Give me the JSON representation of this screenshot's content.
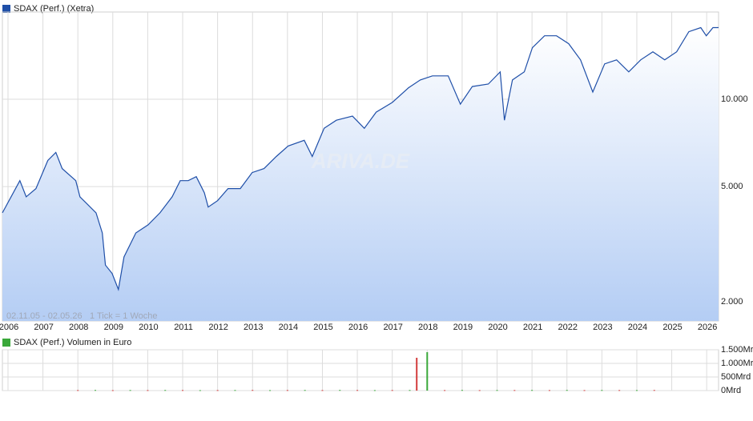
{
  "chart_data": [
    {
      "type": "line",
      "title": "SDAX (Perf.) (Xetra)",
      "color": "#1f4fa8",
      "range_note": "02.11.05 - 02.05.26",
      "tick_note": "1 Tick = 1 Woche",
      "watermark": "ARIVA.DE",
      "log_scale": true,
      "grid": true,
      "x": [
        2005.84,
        2006.34,
        2006.52,
        2006.8,
        2007.14,
        2007.37,
        2007.55,
        2007.94,
        2008.06,
        2008.52,
        2008.7,
        2008.79,
        2008.98,
        2009.16,
        2009.32,
        2009.66,
        2010.01,
        2010.35,
        2010.7,
        2010.93,
        2011.16,
        2011.39,
        2011.62,
        2011.73,
        2012.0,
        2012.3,
        2012.65,
        2012.99,
        2013.33,
        2013.68,
        2014.02,
        2014.48,
        2014.71,
        2015.05,
        2015.4,
        2015.86,
        2016.2,
        2016.54,
        2017.0,
        2017.46,
        2017.8,
        2018.15,
        2018.6,
        2018.95,
        2019.29,
        2019.75,
        2020.09,
        2020.21,
        2020.44,
        2020.78,
        2021.01,
        2021.36,
        2021.7,
        2022.05,
        2022.39,
        2022.74,
        2023.08,
        2023.42,
        2023.77,
        2024.11,
        2024.46,
        2024.8,
        2025.14,
        2025.49,
        2025.83,
        2025.99,
        2026.18,
        2026.34
      ],
      "values": [
        4060,
        5240,
        4610,
        4920,
        6150,
        6560,
        5770,
        5240,
        4610,
        4060,
        3460,
        2680,
        2510,
        2210,
        2860,
        3460,
        3690,
        4060,
        4610,
        5240,
        5240,
        5410,
        4760,
        4250,
        4470,
        4920,
        4920,
        5590,
        5770,
        6350,
        6900,
        7220,
        6350,
        7940,
        8470,
        8750,
        7940,
        9030,
        9750,
        10940,
        11660,
        12040,
        12040,
        9620,
        11070,
        11290,
        12430,
        8470,
        11660,
        12430,
        15060,
        16560,
        16560,
        15550,
        13680,
        10590,
        13250,
        13680,
        12430,
        13680,
        14580,
        13680,
        14580,
        17110,
        17670,
        16560,
        17670,
        17670
      ],
      "xlim": [
        2005.84,
        2026.34
      ],
      "xticks": [
        2006,
        2007,
        2008,
        2009,
        2010,
        2011,
        2012,
        2013,
        2014,
        2015,
        2016,
        2017,
        2018,
        2019,
        2020,
        2021,
        2022,
        2023,
        2024,
        2025,
        2026
      ],
      "ylim": [
        1720,
        20000
      ],
      "yticks": [
        {
          "value": 2000,
          "label": "2.000"
        },
        {
          "value": 5000,
          "label": "5.000"
        },
        {
          "value": 10000,
          "label": "10.000"
        }
      ]
    },
    {
      "type": "bar",
      "title": "SDAX (Perf.) Volumen in Euro",
      "color": "#3aa83a",
      "grid": true,
      "x": [
        2008.0,
        2008.5,
        2009.0,
        2009.5,
        2010.0,
        2010.5,
        2011.0,
        2011.5,
        2012.0,
        2012.5,
        2013.0,
        2013.5,
        2014.0,
        2014.5,
        2015.0,
        2015.5,
        2016.0,
        2016.5,
        2017.0,
        2017.5,
        2017.7,
        2018.0,
        2018.5,
        2019.0,
        2019.5,
        2020.0,
        2020.5,
        2021.0,
        2021.5,
        2022.0,
        2022.5,
        2023.0,
        2023.5,
        2024.0,
        2024.5
      ],
      "values": [
        18,
        22,
        15,
        20,
        17,
        21,
        19,
        16,
        18,
        20,
        22,
        17,
        19,
        21,
        18,
        23,
        20,
        17,
        19,
        21,
        1206,
        1412,
        18,
        22,
        17,
        20,
        19,
        21,
        18,
        22,
        17,
        20,
        19,
        18,
        21
      ],
      "colors": [
        "#d23c3c",
        "#3aa83a",
        "#d23c3c",
        "#3aa83a",
        "#d23c3c",
        "#3aa83a",
        "#d23c3c",
        "#3aa83a",
        "#d23c3c",
        "#3aa83a",
        "#d23c3c",
        "#3aa83a",
        "#d23c3c",
        "#3aa83a",
        "#d23c3c",
        "#3aa83a",
        "#d23c3c",
        "#3aa83a",
        "#d23c3c",
        "#3aa83a",
        "#d23c3c",
        "#3aa83a",
        "#d23c3c",
        "#3aa83a",
        "#d23c3c",
        "#3aa83a",
        "#d23c3c",
        "#3aa83a",
        "#d23c3c",
        "#3aa83a",
        "#d23c3c",
        "#3aa83a",
        "#d23c3c",
        "#3aa83a",
        "#d23c3c"
      ],
      "xlim": [
        2005.84,
        2026.34
      ],
      "ylim": [
        0,
        1500
      ],
      "yticks": [
        {
          "value": 0,
          "label": "0Mrd"
        },
        {
          "value": 500,
          "label": "500Mrd"
        },
        {
          "value": 1000,
          "label": "1.000Mrd"
        },
        {
          "value": 1500,
          "label": "1.500Mrd"
        }
      ]
    }
  ]
}
